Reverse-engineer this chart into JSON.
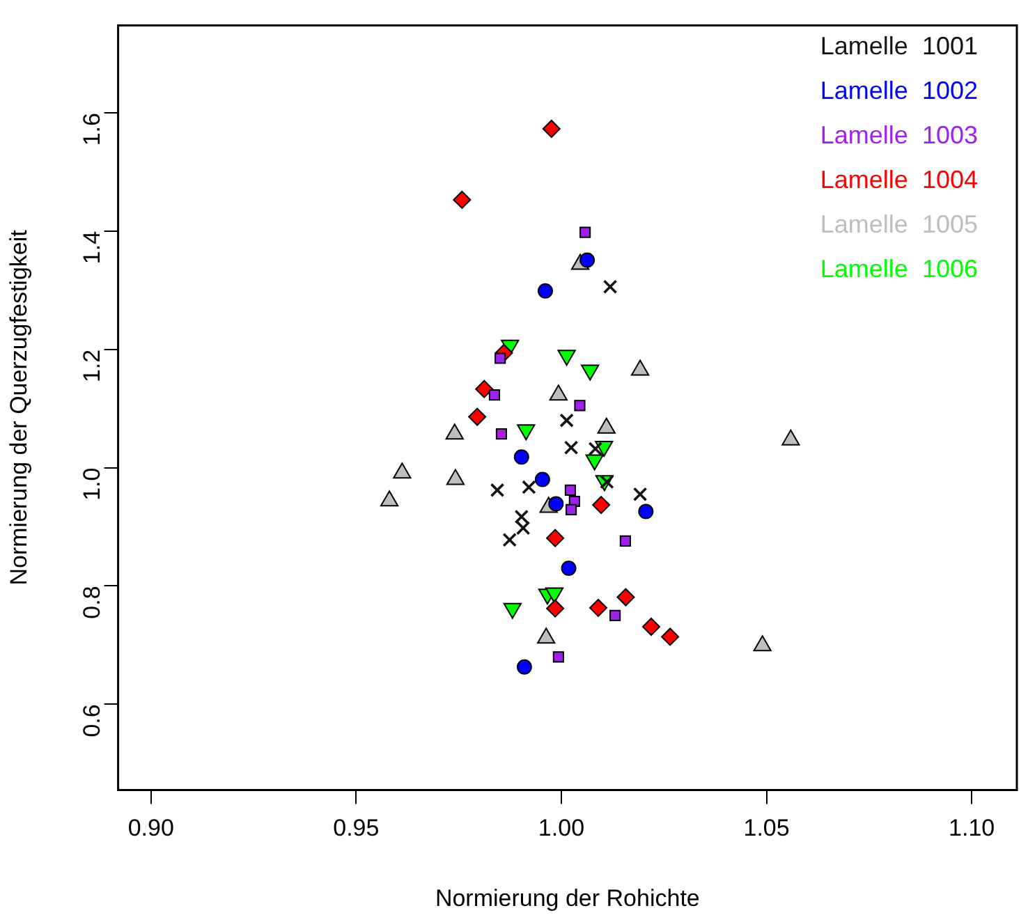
{
  "chart_data": {
    "type": "scatter",
    "xlabel": "Normierung der Rohichte",
    "ylabel": "Normierung der Querzugfestigkeit",
    "xlim": [
      0.892,
      1.111
    ],
    "ylim": [
      0.455,
      1.748
    ],
    "xticks": [
      {
        "value": 0.9,
        "label": "0.90"
      },
      {
        "value": 0.95,
        "label": "0.95"
      },
      {
        "value": 1,
        "label": "1.00"
      },
      {
        "value": 1.05,
        "label": "1.05"
      },
      {
        "value": 1.1,
        "label": "1.10"
      }
    ],
    "yticks": [
      0.6,
      0.8,
      {
        "value": 1,
        "label": "1.0"
      },
      1.2,
      1.4,
      1.6
    ],
    "grid": false,
    "legend": "top right",
    "series": [
      {
        "name": "Lamelle  1001",
        "color": "#141414",
        "marker": "cross",
        "x": [
          1.0119,
          1.0013,
          1.0024,
          1.0083,
          1.0111,
          0.9844,
          0.9921,
          1.0192,
          0.9903,
          0.9907,
          0.9874
        ],
        "values": [
          1.306,
          1.08,
          1.034,
          1.032,
          0.976,
          0.962,
          0.967,
          0.955,
          0.917,
          0.898,
          0.878
        ]
      },
      {
        "name": "Lamelle  1002",
        "color": "#0000ff",
        "marker": "circle",
        "x": [
          1.0063,
          0.9961,
          0.9903,
          0.9954,
          0.9987,
          1.0206,
          1.0018,
          0.991
        ],
        "values": [
          1.351,
          1.299,
          1.018,
          0.98,
          0.939,
          0.926,
          0.83,
          0.663
        ]
      },
      {
        "name": "Lamelle  1003",
        "color": "#a020f0",
        "marker": "square",
        "x": [
          1.0058,
          0.9851,
          0.9837,
          1.0045,
          0.9854,
          1.0022,
          1.0032,
          1.0024,
          1.0156,
          1.0131,
          0.9993
        ],
        "values": [
          1.398,
          1.185,
          1.123,
          1.105,
          1.057,
          0.962,
          0.943,
          0.929,
          0.876,
          0.75,
          0.68
        ]
      },
      {
        "name": "Lamelle  1004",
        "color": "#ff0000",
        "marker": "diamond",
        "x": [
          0.9976,
          0.9758,
          0.986,
          0.9812,
          0.9795,
          1.0097,
          0.9985,
          0.9985,
          1.009,
          1.0157,
          1.0219,
          1.0265
        ],
        "values": [
          1.573,
          1.453,
          1.194,
          1.133,
          1.086,
          0.937,
          0.881,
          0.762,
          0.763,
          0.781,
          0.731,
          0.714
        ]
      },
      {
        "name": "Lamelle  1005",
        "color": "#bebebe",
        "marker": "triangle",
        "x": [
          1.0046,
          1.0192,
          0.9993,
          1.011,
          0.974,
          1.0559,
          0.9612,
          0.9742,
          0.9581,
          0.9969,
          0.9963,
          1.049
        ],
        "values": [
          1.344,
          1.165,
          1.123,
          1.067,
          1.057,
          1.047,
          0.991,
          0.98,
          0.944,
          0.933,
          0.712,
          0.699
        ]
      },
      {
        "name": "Lamelle  1006",
        "color": "#00ff00",
        "marker": "triangle-down",
        "x": [
          0.9875,
          1.0013,
          1.007,
          0.9914,
          1.0104,
          1.0081,
          1.0105,
          0.9966,
          0.9983,
          0.9881
        ],
        "values": [
          1.207,
          1.19,
          1.165,
          1.064,
          1.036,
          1.013,
          0.978,
          0.786,
          0.788,
          0.762
        ]
      }
    ]
  }
}
